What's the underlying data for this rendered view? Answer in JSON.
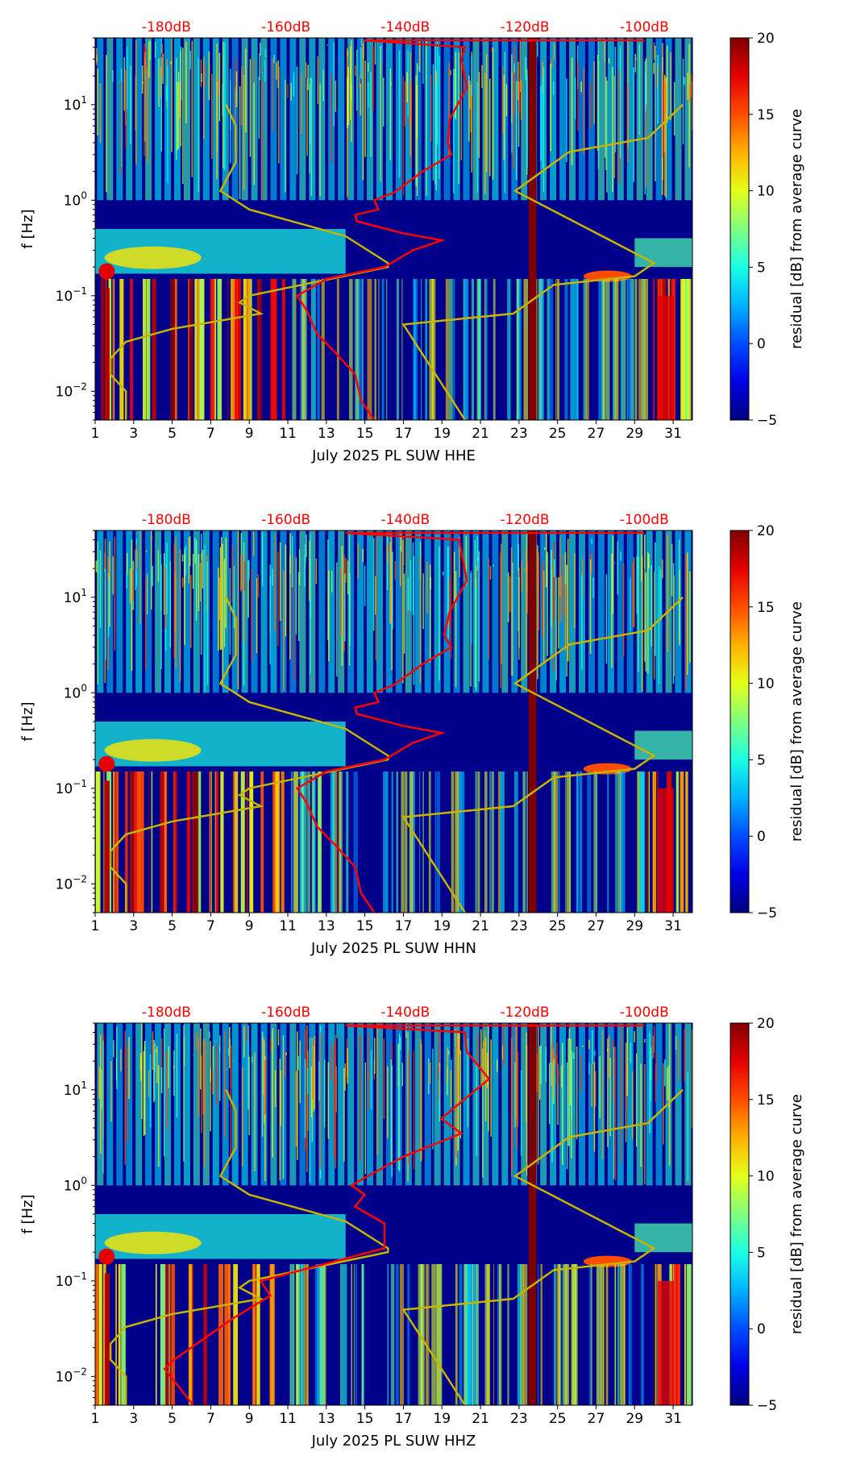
{
  "chart_data": [
    {
      "type": "heatmap",
      "title": "",
      "xlabel": "July 2025 PL SUW  HHE",
      "ylabel": "f [Hz]",
      "xlim": [
        1,
        32
      ],
      "ylim": [
        0.005,
        50
      ],
      "yscale": "log",
      "xticks": [
        "1",
        "3",
        "5",
        "7",
        "9",
        "11",
        "13",
        "15",
        "17",
        "19",
        "21",
        "23",
        "25",
        "27",
        "29",
        "31"
      ],
      "yticks": [
        {
          "v": 0.01,
          "b": "10",
          "e": "−2"
        },
        {
          "v": 0.1,
          "b": "10",
          "e": "−1"
        },
        {
          "v": 1,
          "b": "10",
          "e": "0"
        },
        {
          "v": 10,
          "b": "10",
          "e": "1"
        }
      ],
      "top_axis": {
        "labels": [
          "-180dB",
          "-160dB",
          "-140dB",
          "-120dB",
          "-100dB"
        ],
        "values": [
          -180,
          -160,
          -140,
          -120,
          -100
        ],
        "color": "#ff0000"
      },
      "colorbar": {
        "label": "residual [dB] from average curve",
        "range": [
          -5,
          20
        ],
        "ticks": [
          "20",
          "15",
          "10",
          "5",
          "0",
          "−5"
        ],
        "colormap": "jet"
      },
      "psd_curve_db_vs_f": [
        [
          -100,
          50
        ],
        [
          -147,
          50
        ],
        [
          -130,
          40
        ],
        [
          -130.6,
          30
        ],
        [
          -129.7,
          15
        ],
        [
          -132.6,
          7
        ],
        [
          -132.9,
          4
        ],
        [
          -132.3,
          3
        ],
        [
          -137.1,
          2
        ],
        [
          -141.9,
          1.2
        ],
        [
          -145.2,
          1
        ],
        [
          -144.5,
          0.8
        ],
        [
          -148.4,
          0.7
        ],
        [
          -148.1,
          0.6
        ],
        [
          -140.3,
          0.45
        ],
        [
          -133.9,
          0.38
        ],
        [
          -138.7,
          0.3
        ],
        [
          -143.5,
          0.2
        ],
        [
          -153.2,
          0.15
        ],
        [
          -158.1,
          0.1
        ],
        [
          -156.5,
          0.07
        ],
        [
          -154.8,
          0.04
        ],
        [
          -151.6,
          0.025
        ],
        [
          -148.4,
          0.015
        ],
        [
          -147.4,
          0.008
        ],
        [
          -145.2,
          0.005
        ]
      ],
      "mode_curve_day_vs_f": [
        [
          7.8,
          10
        ],
        [
          8.3,
          6
        ],
        [
          8.3,
          2.5
        ],
        [
          7.5,
          1.25
        ],
        [
          9,
          0.8
        ],
        [
          14,
          0.42
        ],
        [
          16.2,
          0.22
        ],
        [
          16.2,
          0.2
        ],
        [
          9,
          0.1
        ],
        [
          8.5,
          0.085
        ],
        [
          9.6,
          0.065
        ],
        [
          5,
          0.045
        ],
        [
          2.6,
          0.033
        ],
        [
          1.8,
          0.022
        ],
        [
          1.8,
          0.015
        ],
        [
          2.6,
          0.01
        ],
        [
          2.6,
          0.005
        ]
      ],
      "mode_curve2_day_vs_f": [
        [
          20.2,
          0.005
        ],
        [
          17,
          0.05
        ],
        [
          22.7,
          0.065
        ],
        [
          24.8,
          0.13
        ],
        [
          29,
          0.16
        ],
        [
          30,
          0.22
        ],
        [
          22.8,
          1.25
        ],
        [
          25.6,
          3.2
        ],
        [
          29.7,
          4.5
        ],
        [
          31.5,
          10
        ]
      ],
      "gap_day": 23.7,
      "seed": 3
    },
    {
      "type": "heatmap",
      "title": "",
      "xlabel": "July 2025 PL SUW  HHN",
      "ylabel": "f [Hz]",
      "xlim": [
        1,
        32
      ],
      "ylim": [
        0.005,
        50
      ],
      "yscale": "log",
      "xticks": [
        "1",
        "3",
        "5",
        "7",
        "9",
        "11",
        "13",
        "15",
        "17",
        "19",
        "21",
        "23",
        "25",
        "27",
        "29",
        "31"
      ],
      "yticks": [
        {
          "v": 0.01,
          "b": "10",
          "e": "−2"
        },
        {
          "v": 0.1,
          "b": "10",
          "e": "−1"
        },
        {
          "v": 1,
          "b": "10",
          "e": "0"
        },
        {
          "v": 10,
          "b": "10",
          "e": "1"
        }
      ],
      "top_axis": {
        "labels": [
          "-180dB",
          "-160dB",
          "-140dB",
          "-120dB",
          "-100dB"
        ],
        "values": [
          -180,
          -160,
          -140,
          -120,
          -100
        ],
        "color": "#ff0000"
      },
      "colorbar": {
        "label": "residual [dB] from average curve",
        "range": [
          -5,
          20
        ],
        "ticks": [
          "20",
          "15",
          "10",
          "5",
          "0",
          "−5"
        ],
        "colormap": "jet"
      },
      "psd_curve_db_vs_f": [
        [
          -100,
          50
        ],
        [
          -150,
          50
        ],
        [
          -131,
          40
        ],
        [
          -130.6,
          30
        ],
        [
          -129.7,
          15
        ],
        [
          -132.6,
          7
        ],
        [
          -133.5,
          4
        ],
        [
          -132.3,
          3
        ],
        [
          -137.1,
          2
        ],
        [
          -142,
          1.2
        ],
        [
          -145.2,
          1
        ],
        [
          -144.5,
          0.8
        ],
        [
          -148.4,
          0.7
        ],
        [
          -148.1,
          0.6
        ],
        [
          -140.3,
          0.45
        ],
        [
          -133.9,
          0.38
        ],
        [
          -138.7,
          0.3
        ],
        [
          -143.5,
          0.2
        ],
        [
          -153.2,
          0.15
        ],
        [
          -158.1,
          0.1
        ],
        [
          -156.5,
          0.07
        ],
        [
          -154.8,
          0.04
        ],
        [
          -151.6,
          0.025
        ],
        [
          -148.4,
          0.015
        ],
        [
          -147.4,
          0.008
        ],
        [
          -145.2,
          0.005
        ]
      ],
      "mode_curve_day_vs_f": [
        [
          7.8,
          10
        ],
        [
          8.3,
          6
        ],
        [
          8.3,
          2.5
        ],
        [
          7.5,
          1.25
        ],
        [
          9,
          0.8
        ],
        [
          14,
          0.42
        ],
        [
          16.2,
          0.22
        ],
        [
          16.2,
          0.2
        ],
        [
          9,
          0.1
        ],
        [
          8.5,
          0.085
        ],
        [
          9.6,
          0.065
        ],
        [
          5,
          0.045
        ],
        [
          2.6,
          0.033
        ],
        [
          1.8,
          0.022
        ],
        [
          1.8,
          0.015
        ],
        [
          2.6,
          0.01
        ],
        [
          2.6,
          0.005
        ]
      ],
      "mode_curve2_day_vs_f": [
        [
          20.2,
          0.005
        ],
        [
          17,
          0.05
        ],
        [
          22.7,
          0.065
        ],
        [
          24.8,
          0.13
        ],
        [
          29,
          0.16
        ],
        [
          30,
          0.22
        ],
        [
          22.8,
          1.25
        ],
        [
          25.6,
          3.2
        ],
        [
          29.7,
          4.5
        ],
        [
          31.5,
          10
        ]
      ],
      "gap_day": 23.7,
      "seed": 7
    },
    {
      "type": "heatmap",
      "title": "",
      "xlabel": "July 2025 PL SUW  HHZ",
      "ylabel": "f [Hz]",
      "xlim": [
        1,
        32
      ],
      "ylim": [
        0.005,
        50
      ],
      "yscale": "log",
      "xticks": [
        "1",
        "3",
        "5",
        "7",
        "9",
        "11",
        "13",
        "15",
        "17",
        "19",
        "21",
        "23",
        "25",
        "27",
        "29",
        "31"
      ],
      "yticks": [
        {
          "v": 0.01,
          "b": "10",
          "e": "−2"
        },
        {
          "v": 0.1,
          "b": "10",
          "e": "−1"
        },
        {
          "v": 1,
          "b": "10",
          "e": "0"
        },
        {
          "v": 10,
          "b": "10",
          "e": "1"
        }
      ],
      "top_axis": {
        "labels": [
          "-180dB",
          "-160dB",
          "-140dB",
          "-120dB",
          "-100dB"
        ],
        "values": [
          -180,
          -160,
          -140,
          -120,
          -100
        ],
        "color": "#ff0000"
      },
      "colorbar": {
        "label": "residual [dB] from average curve",
        "range": [
          -5,
          20
        ],
        "ticks": [
          "20",
          "15",
          "10",
          "5",
          "0",
          "−5"
        ],
        "colormap": "jet"
      },
      "psd_curve_db_vs_f": [
        [
          -100,
          50
        ],
        [
          -150,
          50
        ],
        [
          -130,
          40
        ],
        [
          -129.7,
          25
        ],
        [
          -126,
          13
        ],
        [
          -134,
          5
        ],
        [
          -130.6,
          3.5
        ],
        [
          -140.3,
          2
        ],
        [
          -146.8,
          1.2
        ],
        [
          -149,
          1
        ],
        [
          -146.8,
          0.8
        ],
        [
          -148.4,
          0.6
        ],
        [
          -143.5,
          0.4
        ],
        [
          -143.5,
          0.22
        ],
        [
          -164.2,
          0.1
        ],
        [
          -162.6,
          0.07
        ],
        [
          -169,
          0.04
        ],
        [
          -178.7,
          0.015
        ],
        [
          -180.3,
          0.012
        ],
        [
          -175.5,
          0.005
        ]
      ],
      "mode_curve_day_vs_f": [
        [
          7.8,
          10
        ],
        [
          8.3,
          6
        ],
        [
          8.3,
          2.5
        ],
        [
          7.5,
          1.25
        ],
        [
          9,
          0.8
        ],
        [
          14,
          0.42
        ],
        [
          16.2,
          0.22
        ],
        [
          16.2,
          0.2
        ],
        [
          9,
          0.1
        ],
        [
          8.5,
          0.085
        ],
        [
          9.6,
          0.065
        ],
        [
          5,
          0.045
        ],
        [
          2.6,
          0.033
        ],
        [
          1.8,
          0.022
        ],
        [
          1.8,
          0.015
        ],
        [
          2.6,
          0.01
        ],
        [
          2.6,
          0.005
        ]
      ],
      "mode_curve2_day_vs_f": [
        [
          20.2,
          0.005
        ],
        [
          17,
          0.05
        ],
        [
          22.7,
          0.065
        ],
        [
          24.8,
          0.13
        ],
        [
          29,
          0.16
        ],
        [
          30,
          0.22
        ],
        [
          22.8,
          1.25
        ],
        [
          25.6,
          3.2
        ],
        [
          29.7,
          4.5
        ],
        [
          31.5,
          10
        ]
      ],
      "gap_day": 23.7,
      "seed": 11
    }
  ],
  "colors": {
    "psd": "#ff0000",
    "mode": "#c8b400",
    "gap": "#800000",
    "bg": "#00008b"
  }
}
